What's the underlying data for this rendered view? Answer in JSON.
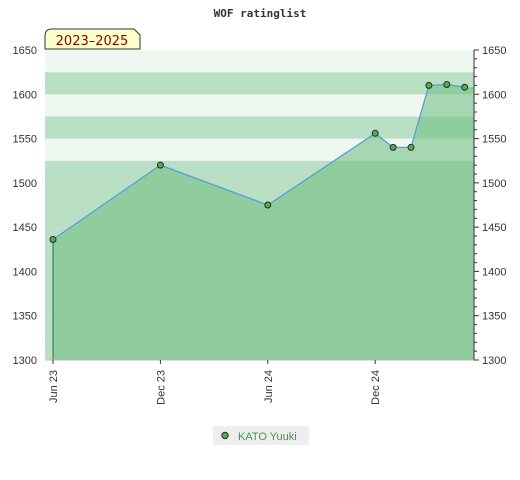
{
  "chart_data": {
    "type": "area",
    "title": "WOF ratinglist",
    "period_label": "2023–2025",
    "x_ticks": [
      "Jun 23",
      "Dec 23",
      "Jun 24",
      "Dec 24"
    ],
    "ylim": [
      1300,
      1650
    ],
    "y_ticks": [
      1300,
      1350,
      1400,
      1450,
      1500,
      1550,
      1600,
      1650
    ],
    "grid": "horizontal bands",
    "legend_position": "bottom-center",
    "series": [
      {
        "name": "KATO Yuuki",
        "points": [
          {
            "x": "2023-06",
            "y": 1436
          },
          {
            "x": "2023-12",
            "y": 1520
          },
          {
            "x": "2024-06",
            "y": 1475
          },
          {
            "x": "2024-12",
            "y": 1556
          },
          {
            "x": "2025-01",
            "y": 1540
          },
          {
            "x": "2025-02",
            "y": 1540
          },
          {
            "x": "2025-03",
            "y": 1610
          },
          {
            "x": "2025-04",
            "y": 1611
          },
          {
            "x": "2025-05",
            "y": 1608
          }
        ]
      }
    ],
    "colors": {
      "line": "#5aa0d8",
      "area": "#6dbb80",
      "marker": "#4caf50",
      "band_dark": "#b9dfc4",
      "band_light": "#eef7f0",
      "badge_bg": "#ffffcc"
    }
  }
}
